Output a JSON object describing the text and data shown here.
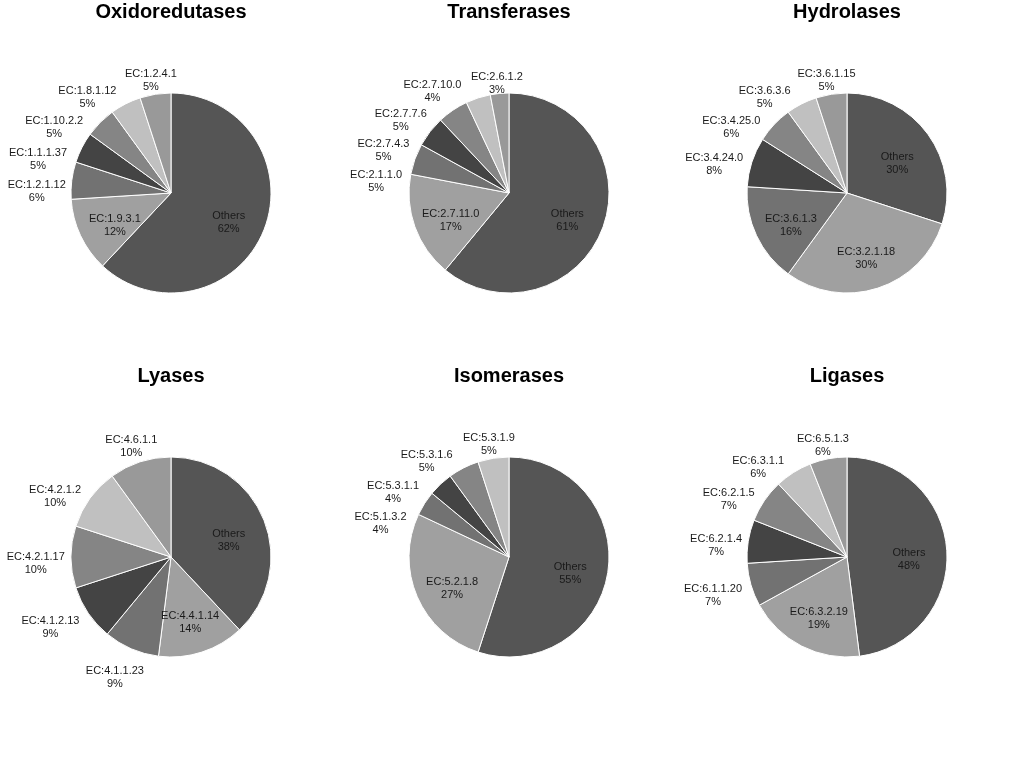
{
  "chart_data": [
    {
      "type": "pie",
      "title": "Oxidoredutases",
      "categories": [
        "Others",
        "EC:1.9.3.1",
        "EC:1.2.1.12",
        "EC:1.1.1.37",
        "EC:1.10.2.2",
        "EC:1.8.1.12",
        "EC:1.2.4.1"
      ],
      "values": [
        62,
        12,
        6,
        5,
        5,
        5,
        5
      ],
      "value_labels": [
        "62%",
        "12%",
        "6%",
        "5%",
        "5%",
        "5%",
        "5%"
      ],
      "colors": [
        "#555555",
        "#a0a0a0",
        "#727272",
        "#444444",
        "#858585",
        "#c0c0c0",
        "#999999"
      ]
    },
    {
      "type": "pie",
      "title": "Transferases",
      "categories": [
        "Others",
        "EC:2.7.11.0",
        "EC:2.1.1.0",
        "EC:2.7.4.3",
        "EC:2.7.7.6",
        "EC:2.7.10.0",
        "EC:2.6.1.2"
      ],
      "values": [
        61,
        17,
        5,
        5,
        5,
        4,
        3
      ],
      "value_labels": [
        "61%",
        "17%",
        "5%",
        "5%",
        "5%",
        "4%",
        "3%"
      ],
      "colors": [
        "#555555",
        "#a0a0a0",
        "#727272",
        "#444444",
        "#858585",
        "#c0c0c0",
        "#999999"
      ]
    },
    {
      "type": "pie",
      "title": "Hydrolases",
      "categories": [
        "Others",
        "EC:3.2.1.18",
        "EC:3.6.1.3",
        "EC:3.4.24.0",
        "EC:3.4.25.0",
        "EC:3.6.3.6",
        "EC:3.6.1.15"
      ],
      "values": [
        30,
        30,
        16,
        8,
        6,
        5,
        5
      ],
      "value_labels": [
        "30%",
        "30%",
        "16%",
        "8%",
        "6%",
        "5%",
        "5%"
      ],
      "colors": [
        "#555555",
        "#a0a0a0",
        "#727272",
        "#444444",
        "#858585",
        "#c0c0c0",
        "#999999"
      ]
    },
    {
      "type": "pie",
      "title": "Lyases",
      "categories": [
        "Others",
        "EC:4.4.1.14",
        "EC:4.1.1.23",
        "EC:4.1.2.13",
        "EC:4.2.1.17",
        "EC:4.2.1.2",
        "EC:4.6.1.1"
      ],
      "values": [
        38,
        14,
        9,
        9,
        10,
        10,
        10
      ],
      "value_labels": [
        "38%",
        "14%",
        "9%",
        "9%",
        "10%",
        "10%",
        "10%"
      ],
      "colors": [
        "#555555",
        "#a0a0a0",
        "#727272",
        "#444444",
        "#858585",
        "#c0c0c0",
        "#999999"
      ]
    },
    {
      "type": "pie",
      "title": "Isomerases",
      "categories": [
        "Others",
        "EC:5.2.1.8",
        "EC:5.1.3.2",
        "EC:5.3.1.1",
        "EC:5.3.1.6",
        "EC:5.3.1.9"
      ],
      "values": [
        55,
        27,
        4,
        4,
        5,
        5
      ],
      "value_labels": [
        "55%",
        "27%",
        "4%",
        "4%",
        "5%",
        "5%"
      ],
      "colors": [
        "#555555",
        "#a0a0a0",
        "#727272",
        "#444444",
        "#858585",
        "#c0c0c0"
      ]
    },
    {
      "type": "pie",
      "title": "Ligases",
      "categories": [
        "Others",
        "EC:6.3.2.19",
        "EC:6.1.1.20",
        "EC:6.2.1.4",
        "EC:6.2.1.5",
        "EC:6.3.1.1",
        "EC:6.5.1.3"
      ],
      "values": [
        48,
        19,
        7,
        7,
        7,
        6,
        6
      ],
      "value_labels": [
        "48%",
        "19%",
        "7%",
        "7%",
        "7%",
        "6%",
        "6%"
      ],
      "colors": [
        "#555555",
        "#a0a0a0",
        "#727272",
        "#444444",
        "#858585",
        "#c0c0c0",
        "#999999"
      ]
    }
  ]
}
